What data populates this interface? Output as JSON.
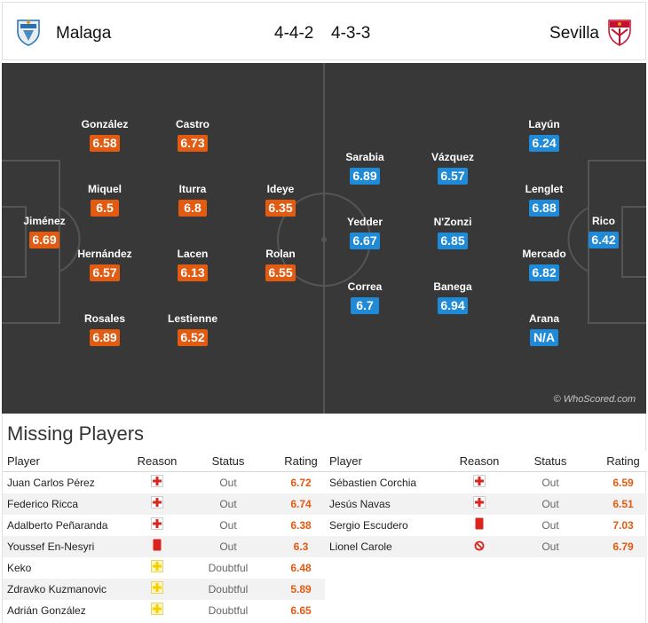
{
  "header": {
    "home_team": "Malaga",
    "away_team": "Sevilla",
    "home_formation": "4-4-2",
    "away_formation": "4-3-3"
  },
  "pitch": {
    "watermark": "© WhoScored.com",
    "home_players": [
      {
        "name": "Jiménez",
        "rating": "6.69"
      },
      {
        "name": "González",
        "rating": "6.58"
      },
      {
        "name": "Miquel",
        "rating": "6.5"
      },
      {
        "name": "Hernández",
        "rating": "6.57"
      },
      {
        "name": "Rosales",
        "rating": "6.89"
      },
      {
        "name": "Castro",
        "rating": "6.73"
      },
      {
        "name": "Iturra",
        "rating": "6.8"
      },
      {
        "name": "Lacen",
        "rating": "6.13"
      },
      {
        "name": "Lestienne",
        "rating": "6.52"
      },
      {
        "name": "Ideye",
        "rating": "6.35"
      },
      {
        "name": "Rolan",
        "rating": "6.55"
      }
    ],
    "away_players": [
      {
        "name": "Sarabia",
        "rating": "6.89"
      },
      {
        "name": "Yedder",
        "rating": "6.67"
      },
      {
        "name": "Correa",
        "rating": "6.7"
      },
      {
        "name": "Vázquez",
        "rating": "6.57"
      },
      {
        "name": "N'Zonzi",
        "rating": "6.85"
      },
      {
        "name": "Banega",
        "rating": "6.94"
      },
      {
        "name": "Layún",
        "rating": "6.24"
      },
      {
        "name": "Lenglet",
        "rating": "6.88"
      },
      {
        "name": "Mercado",
        "rating": "6.82"
      },
      {
        "name": "Arana",
        "rating": "N/A"
      },
      {
        "name": "Rico",
        "rating": "6.42"
      }
    ]
  },
  "missing": {
    "title": "Missing Players",
    "columns": {
      "player": "Player",
      "reason": "Reason",
      "status": "Status",
      "rating": "Rating"
    },
    "home": [
      {
        "player": "Juan Carlos Pérez",
        "reason": "injury-icon",
        "status": "Out",
        "rating": "6.72"
      },
      {
        "player": "Federico Ricca",
        "reason": "injury-icon",
        "status": "Out",
        "rating": "6.74"
      },
      {
        "player": "Adalberto Peñaranda",
        "reason": "injury-icon",
        "status": "Out",
        "rating": "6.38"
      },
      {
        "player": "Youssef En-Nesyri",
        "reason": "red-card-icon",
        "status": "Out",
        "rating": "6.3"
      },
      {
        "player": "Keko",
        "reason": "doubtful-icon",
        "status": "Doubtful",
        "rating": "6.48"
      },
      {
        "player": "Zdravko Kuzmanovic",
        "reason": "doubtful-icon",
        "status": "Doubtful",
        "rating": "5.89"
      },
      {
        "player": "Adrián González",
        "reason": "doubtful-icon",
        "status": "Doubtful",
        "rating": "6.65"
      }
    ],
    "away": [
      {
        "player": "Sébastien Corchia",
        "reason": "injury-icon",
        "status": "Out",
        "rating": "6.59"
      },
      {
        "player": "Jesús Navas",
        "reason": "injury-icon",
        "status": "Out",
        "rating": "6.51"
      },
      {
        "player": "Sergio Escudero",
        "reason": "red-card-icon",
        "status": "Out",
        "rating": "7.03"
      },
      {
        "player": "Lionel Carole",
        "reason": "banned-icon",
        "status": "Out",
        "rating": "6.79"
      }
    ]
  },
  "colors": {
    "home_rating": "#e35a11",
    "away_rating": "#1e8ad8",
    "pitch": "#383838",
    "injury": "#d9251d",
    "red_card": "#d9251d",
    "doubtful": "#f5d000"
  }
}
